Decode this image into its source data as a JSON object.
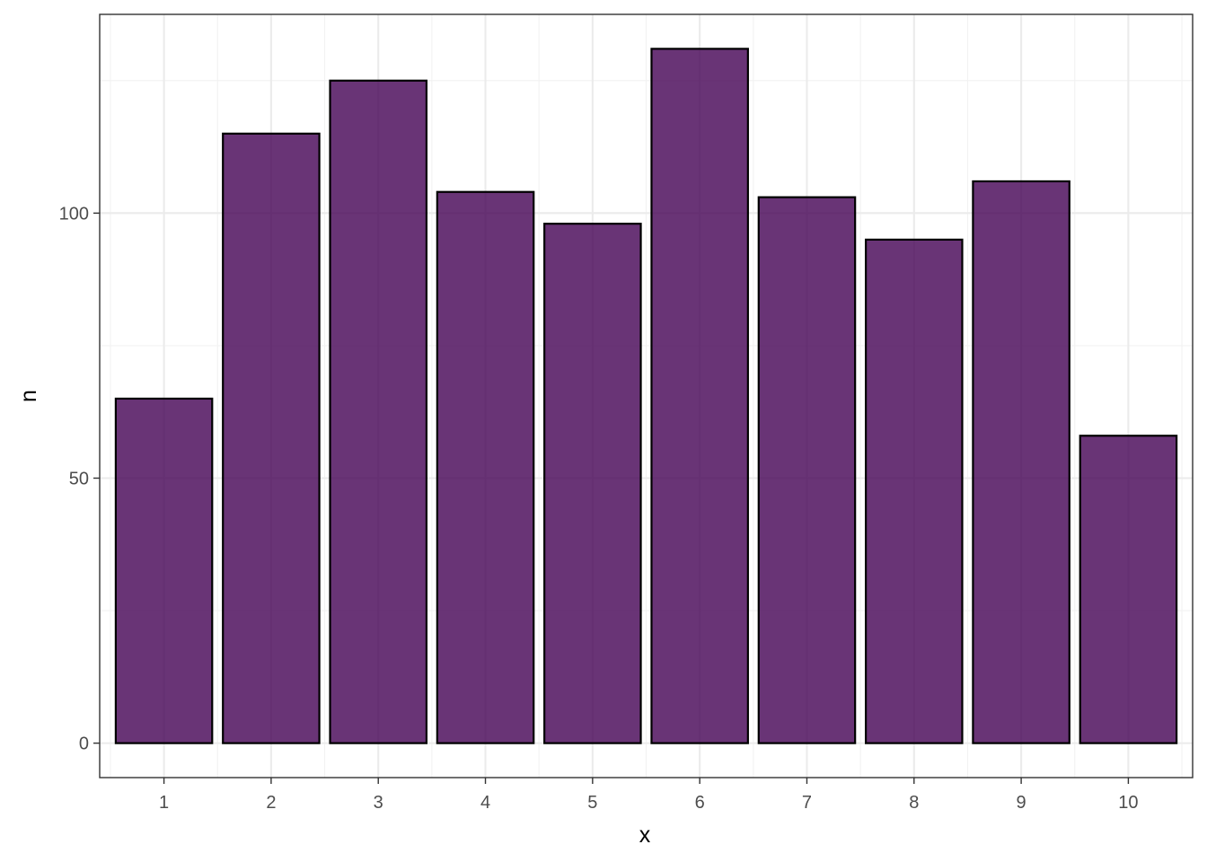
{
  "chart_data": {
    "type": "bar",
    "categories": [
      "1",
      "2",
      "3",
      "4",
      "5",
      "6",
      "7",
      "8",
      "9",
      "10"
    ],
    "values": [
      65,
      115,
      125,
      104,
      98,
      131,
      103,
      95,
      106,
      58
    ],
    "xlabel": "x",
    "ylabel": "n",
    "ylim": [
      -6.5,
      137.5
    ],
    "y_ticks": [
      0,
      50,
      100
    ],
    "y_tick_labels": [
      "0",
      "50",
      "100"
    ],
    "grid": true,
    "legend": "none",
    "colors": {
      "bar_fill": "#440154",
      "bar_fill_opacity": 0.8,
      "bar_outline": "#000000",
      "grid_major": "#ebebeb",
      "grid_minor": "#f2f2f2",
      "panel_border": "#333333",
      "tick_text": "#4d4d4d"
    }
  }
}
